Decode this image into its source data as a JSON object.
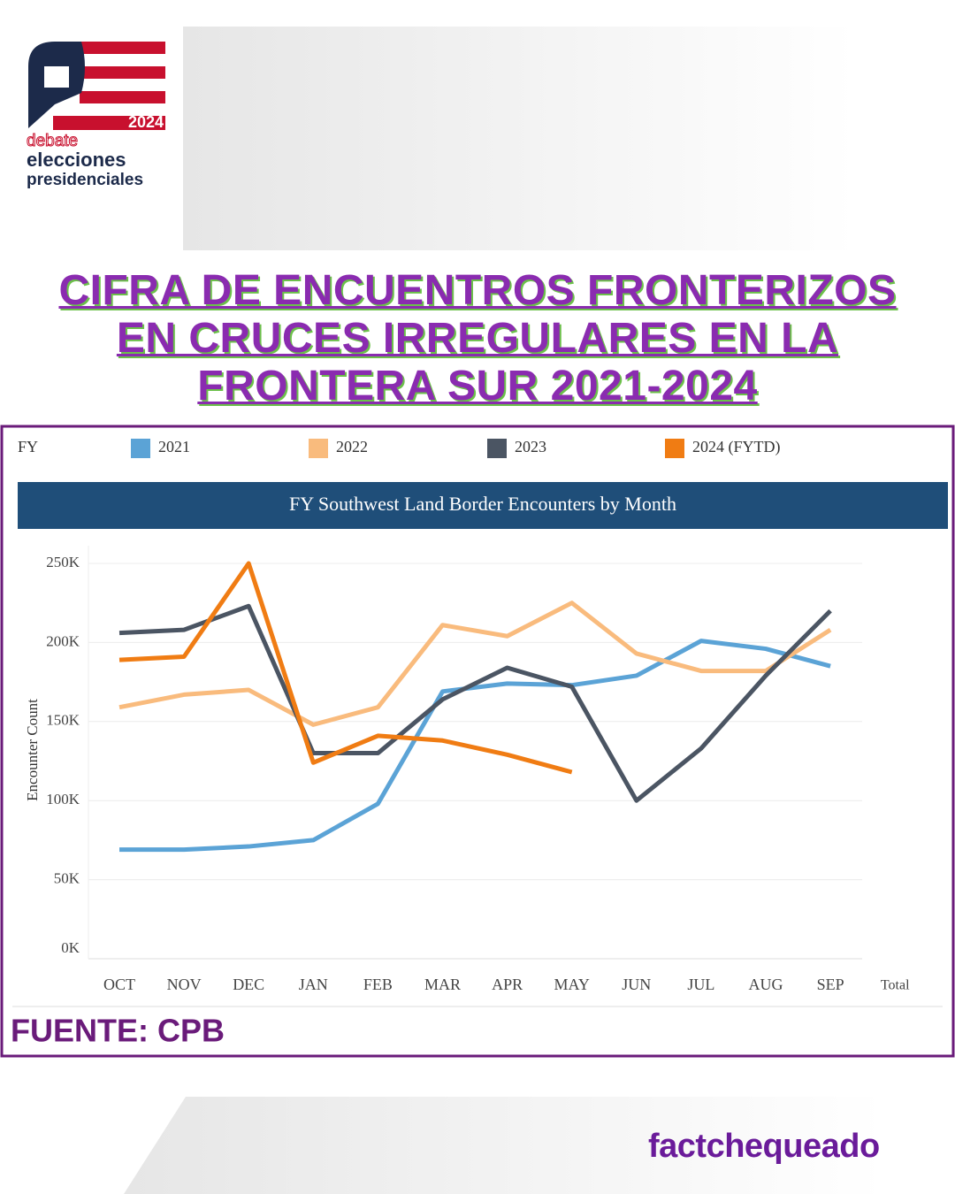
{
  "logo": {
    "year": "2024",
    "words": [
      "debate",
      "elecciones",
      "presidenciales"
    ]
  },
  "headline": [
    "CIFRA DE ENCUENTROS FRONTERIZOS",
    "EN CRUCES IRREGULARES EN LA",
    "FRONTERA SUR 2021-2024"
  ],
  "chart_data": {
    "type": "line",
    "legend_title": "FY",
    "legend_position": "top",
    "title": "FY Southwest Land Border Encounters by Month",
    "ylabel": "Encounter Count",
    "categories": [
      "OCT",
      "NOV",
      "DEC",
      "JAN",
      "FEB",
      "MAR",
      "APR",
      "MAY",
      "JUN",
      "JUL",
      "AUG",
      "SEP",
      "Total"
    ],
    "series": [
      {
        "name": "2021",
        "color": "#5ba3d6",
        "values": [
          69000,
          69000,
          71000,
          75000,
          98000,
          169000,
          174000,
          173000,
          179000,
          201000,
          196000,
          185000,
          null
        ]
      },
      {
        "name": "2022",
        "color": "#f9bb7d",
        "values": [
          159000,
          167000,
          170000,
          148000,
          159000,
          211000,
          204000,
          225000,
          193000,
          182000,
          182000,
          208000,
          null
        ]
      },
      {
        "name": "2023",
        "color": "#4b5563",
        "values": [
          206000,
          208000,
          223000,
          130000,
          130000,
          164000,
          184000,
          172000,
          100000,
          133000,
          179000,
          220000,
          null
        ]
      },
      {
        "name": "2024 (FYTD)",
        "color": "#f07c13",
        "values": [
          189000,
          191000,
          250000,
          124000,
          141000,
          138000,
          129000,
          118000,
          null,
          null,
          null,
          null,
          null
        ]
      }
    ],
    "ylim": [
      0,
      250000
    ],
    "yticks": [
      {
        "value": 0,
        "label": "0K"
      },
      {
        "value": 50000,
        "label": "50K"
      },
      {
        "value": 100000,
        "label": "100K"
      },
      {
        "value": 150000,
        "label": "150K"
      },
      {
        "value": 200000,
        "label": "200K"
      },
      {
        "value": 250000,
        "label": "250K"
      }
    ],
    "grid": true
  },
  "source": "FUENTE: CPB",
  "brand": "factchequeado"
}
